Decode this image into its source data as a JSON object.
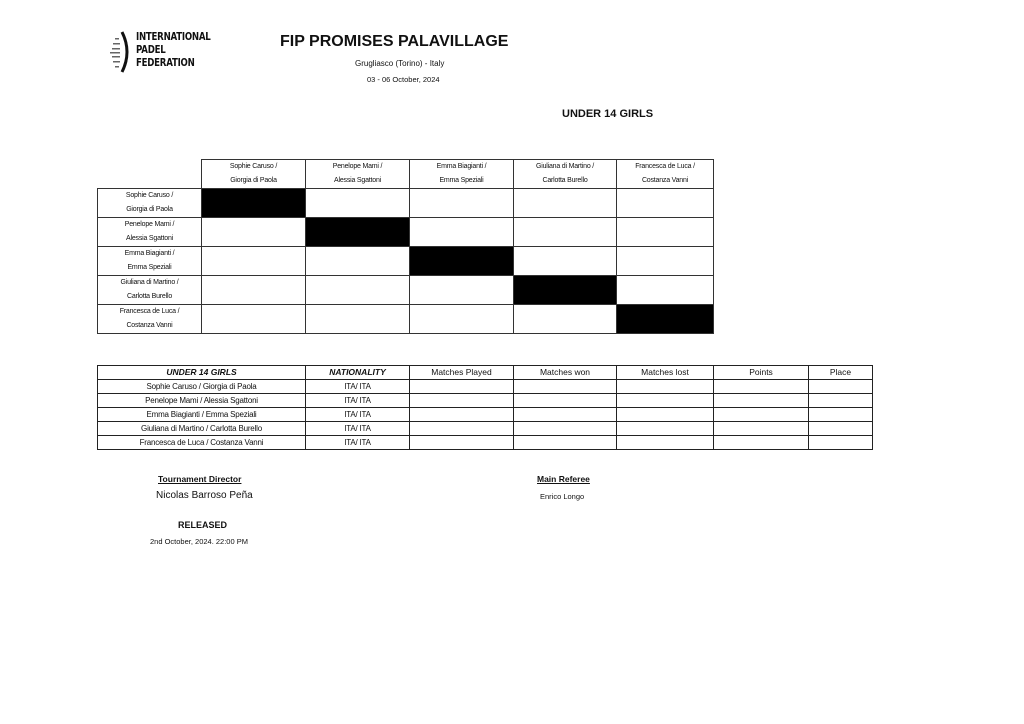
{
  "logo": {
    "lines": [
      "INTERNATIONAL",
      "PADEL",
      "FEDERATION"
    ]
  },
  "header": {
    "title": "FIP PROMISES PALAVILLAGE",
    "location": "Grugliasco (Torino) - Italy",
    "dates": "03 - 06 October, 2024",
    "category": "UNDER 14 GIRLS"
  },
  "matrix": {
    "teams": [
      [
        "Sophie Caruso /",
        "Giorgia di Paola"
      ],
      [
        "Penelope Mami /",
        "Alessia Sgattoni"
      ],
      [
        "Emma Biagianti /",
        "Emma Speziali"
      ],
      [
        "Giuliana di Martino /",
        "Carlotta Burello"
      ],
      [
        "Francesca de Luca /",
        "Costanza Vanni"
      ]
    ]
  },
  "standings": {
    "headers": [
      "UNDER 14 GIRLS",
      "NATIONALITY",
      "Matches Played",
      "Matches won",
      "Matches lost",
      "Points",
      "Place"
    ],
    "rows": [
      {
        "team": "Sophie Caruso / Giorgia di Paola",
        "nationality": "ITA/ ITA"
      },
      {
        "team": "Penelope Mami / Alessia Sgattoni",
        "nationality": "ITA/ ITA"
      },
      {
        "team": "Emma Biagianti / Emma Speziali",
        "nationality": "ITA/ ITA"
      },
      {
        "team": "Giuliana di Martino / Carlotta Burello",
        "nationality": "ITA/ ITA"
      },
      {
        "team": "Francesca de Luca / Costanza Vanni",
        "nationality": "ITA/ ITA"
      }
    ]
  },
  "officials": {
    "director_label": "Tournament Director",
    "director_name": "Nicolas Barroso Peña",
    "referee_label": "Main Referee",
    "referee_name": "Enrico Longo"
  },
  "release": {
    "label": "RELEASED",
    "date": "2nd October, 2024. 22:00 PM"
  }
}
